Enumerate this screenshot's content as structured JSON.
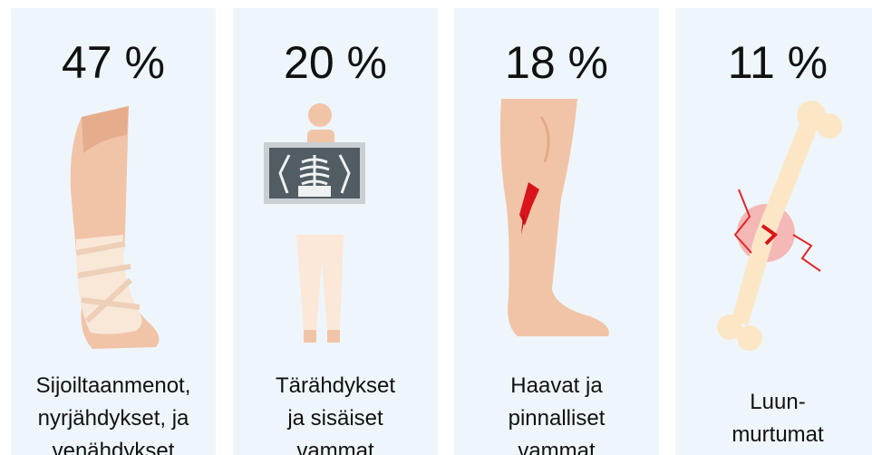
{
  "cards": [
    {
      "value": "47 %",
      "label_lines": [
        "Sijoiltaanmenot,",
        "nyrjähdykset, ja",
        "venähdykset"
      ]
    },
    {
      "value": "20 %",
      "label_lines": [
        "Tärähdykset",
        "ja sisäiset",
        "vammat"
      ]
    },
    {
      "value": "18 %",
      "label_lines": [
        "Haavat ja",
        "pinnalliset",
        "vammat"
      ]
    },
    {
      "value": "11 %",
      "label_lines": [
        "Luun-",
        "murtumat"
      ]
    }
  ]
}
